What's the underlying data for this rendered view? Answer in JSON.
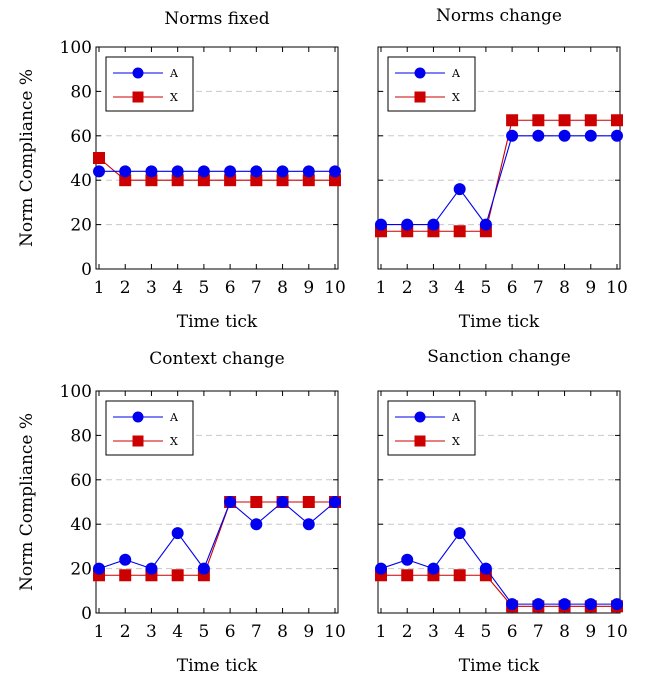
{
  "colors": {
    "A": "#0000ee",
    "X": "#cc0000",
    "grid": "#c8c8c8"
  },
  "shared": {
    "ylabel": "Norm Compliance %",
    "xlabel": "Time tick"
  },
  "chart_data": [
    {
      "type": "line",
      "title": "Norms fixed",
      "xlabel": "Time tick",
      "ylabel": "Norm Compliance %",
      "x": [
        1,
        2,
        3,
        4,
        5,
        6,
        7,
        8,
        9,
        10
      ],
      "xlim": [
        1,
        10
      ],
      "ylim": [
        0,
        100
      ],
      "yticks": [
        0,
        20,
        40,
        60,
        80,
        100
      ],
      "grid": "horizontal dashed",
      "legend": "top-left",
      "series": [
        {
          "name": "A",
          "marker": "circle",
          "values": [
            44,
            44,
            44,
            44,
            44,
            44,
            44,
            44,
            44,
            44
          ]
        },
        {
          "name": "X",
          "marker": "square",
          "values": [
            50,
            40,
            40,
            40,
            40,
            40,
            40,
            40,
            40,
            40
          ]
        }
      ]
    },
    {
      "type": "line",
      "title": "Norms change",
      "xlabel": "Time tick",
      "ylabel": "",
      "x": [
        1,
        2,
        3,
        4,
        5,
        6,
        7,
        8,
        9,
        10
      ],
      "xlim": [
        1,
        10
      ],
      "ylim": [
        0,
        100
      ],
      "yticks": [
        0,
        20,
        40,
        60,
        80,
        100
      ],
      "grid": "horizontal dashed",
      "legend": "top-left",
      "series": [
        {
          "name": "A",
          "marker": "circle",
          "values": [
            20,
            20,
            20,
            36,
            20,
            60,
            60,
            60,
            60,
            60
          ]
        },
        {
          "name": "X",
          "marker": "square",
          "values": [
            17,
            17,
            17,
            17,
            17,
            67,
            67,
            67,
            67,
            67
          ]
        }
      ]
    },
    {
      "type": "line",
      "title": "Context change",
      "xlabel": "Time tick",
      "ylabel": "Norm Compliance %",
      "x": [
        1,
        2,
        3,
        4,
        5,
        6,
        7,
        8,
        9,
        10
      ],
      "xlim": [
        1,
        10
      ],
      "ylim": [
        0,
        100
      ],
      "yticks": [
        0,
        20,
        40,
        60,
        80,
        100
      ],
      "grid": "horizontal dashed",
      "legend": "top-left",
      "series": [
        {
          "name": "A",
          "marker": "circle",
          "values": [
            20,
            24,
            20,
            36,
            20,
            50,
            40,
            50,
            40,
            50
          ]
        },
        {
          "name": "X",
          "marker": "square",
          "values": [
            17,
            17,
            17,
            17,
            17,
            50,
            50,
            50,
            50,
            50
          ]
        }
      ]
    },
    {
      "type": "line",
      "title": "Sanction change",
      "xlabel": "Time tick",
      "ylabel": "",
      "x": [
        1,
        2,
        3,
        4,
        5,
        6,
        7,
        8,
        9,
        10
      ],
      "xlim": [
        1,
        10
      ],
      "ylim": [
        0,
        100
      ],
      "yticks": [
        0,
        20,
        40,
        60,
        80,
        100
      ],
      "grid": "horizontal dashed",
      "legend": "top-left",
      "series": [
        {
          "name": "A",
          "marker": "circle",
          "values": [
            20,
            24,
            20,
            36,
            20,
            4,
            4,
            4,
            4,
            4
          ]
        },
        {
          "name": "X",
          "marker": "square",
          "values": [
            17,
            17,
            17,
            17,
            17,
            3,
            3,
            3,
            3,
            3
          ]
        }
      ]
    }
  ]
}
